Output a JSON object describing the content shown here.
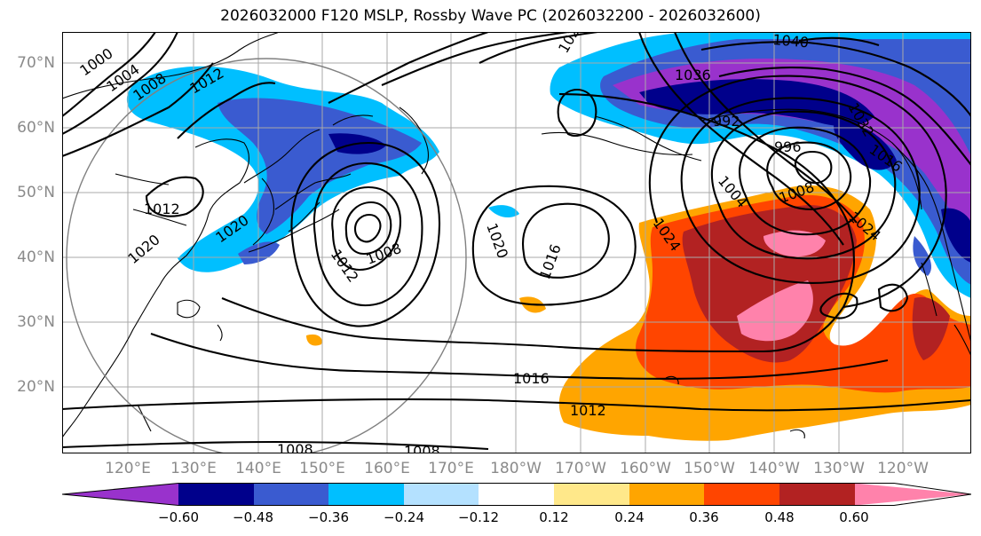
{
  "title": "2026032000 F120 MSLP, Rossby Wave PC (2026032200 - 2026032600)",
  "lat_labels": [
    "70°N",
    "60°N",
    "50°N",
    "40°N",
    "30°N",
    "20°N"
  ],
  "lon_labels": [
    "120°E",
    "130°E",
    "140°E",
    "150°E",
    "160°E",
    "170°E",
    "180°W",
    "170°W",
    "160°W",
    "150°W",
    "140°W",
    "130°W",
    "120°W"
  ],
  "contour_labels": [
    "1000",
    "1004",
    "1008",
    "1012",
    "1012",
    "1008",
    "1020",
    "1016",
    "1012",
    "1008",
    "1020",
    "1016",
    "1024",
    "1004",
    "1036",
    "1040",
    "1032",
    "1028",
    "1016",
    "1012",
    "1008",
    "1008",
    "996",
    "992",
    "1024",
    "1020"
  ],
  "colorbar": {
    "ticks": [
      "−0.60",
      "−0.48",
      "−0.36",
      "−0.24",
      "−0.12",
      "0.12",
      "0.24",
      "0.36",
      "0.48",
      "0.60"
    ],
    "colors": [
      "#9932cc",
      "#00008b",
      "#3a5bd0",
      "#00bfff",
      "#b4e1ff",
      "#ffffff",
      "#ffe88a",
      "#ffa500",
      "#ff4500",
      "#b22222",
      "#ff82ab"
    ]
  }
}
